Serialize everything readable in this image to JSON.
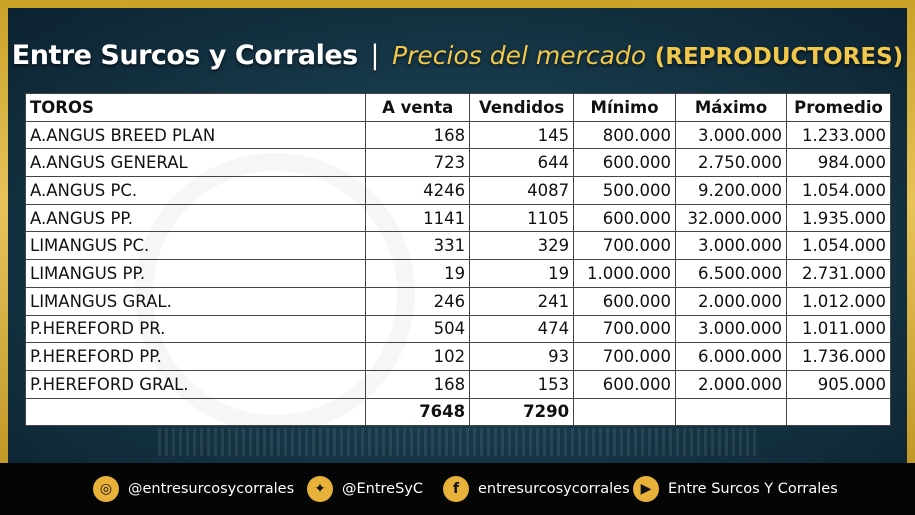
{
  "header": {
    "brand": "Entre Surcos y Corrales",
    "separator": "|",
    "subtitle": "Precios del mercado",
    "category": "(REPRODUCTORES)"
  },
  "table": {
    "headers": [
      "TOROS",
      "A venta",
      "Vendidos",
      "Mínimo",
      "Máximo",
      "Promedio"
    ],
    "rows": [
      [
        "A.ANGUS BREED PLAN",
        "168",
        "145",
        "800.000",
        "3.000.000",
        "1.233.000"
      ],
      [
        "A.ANGUS GENERAL",
        "723",
        "644",
        "600.000",
        "2.750.000",
        "984.000"
      ],
      [
        "A.ANGUS PC.",
        "4246",
        "4087",
        "500.000",
        "9.200.000",
        "1.054.000"
      ],
      [
        "A.ANGUS PP.",
        "1141",
        "1105",
        "600.000",
        "32.000.000",
        "1.935.000"
      ],
      [
        "LIMANGUS PC.",
        "331",
        "329",
        "700.000",
        "3.000.000",
        "1.054.000"
      ],
      [
        "LIMANGUS PP.",
        "19",
        "19",
        "1.000.000",
        "6.500.000",
        "2.731.000"
      ],
      [
        "LIMANGUS GRAL.",
        "246",
        "241",
        "600.000",
        "2.000.000",
        "1.012.000"
      ],
      [
        "P.HEREFORD PR.",
        "504",
        "474",
        "700.000",
        "3.000.000",
        "1.011.000"
      ],
      [
        "P.HEREFORD PP.",
        "102",
        "93",
        "700.000",
        "6.000.000",
        "1.736.000"
      ],
      [
        "P.HEREFORD GRAL.",
        "168",
        "153",
        "600.000",
        "2.000.000",
        "905.000"
      ]
    ],
    "totals": [
      "",
      "7648",
      "7290",
      "",
      "",
      ""
    ]
  },
  "footer": {
    "instagram": "@entresurcosycorrales",
    "twitter": "@EntreSyC",
    "facebook": "entresurcosycorrales",
    "youtube": "Entre Surcos Y Corrales",
    "icons": [
      "instagram-icon",
      "twitter-icon",
      "facebook-icon",
      "youtube-icon"
    ],
    "accent": "#e8b23a"
  }
}
